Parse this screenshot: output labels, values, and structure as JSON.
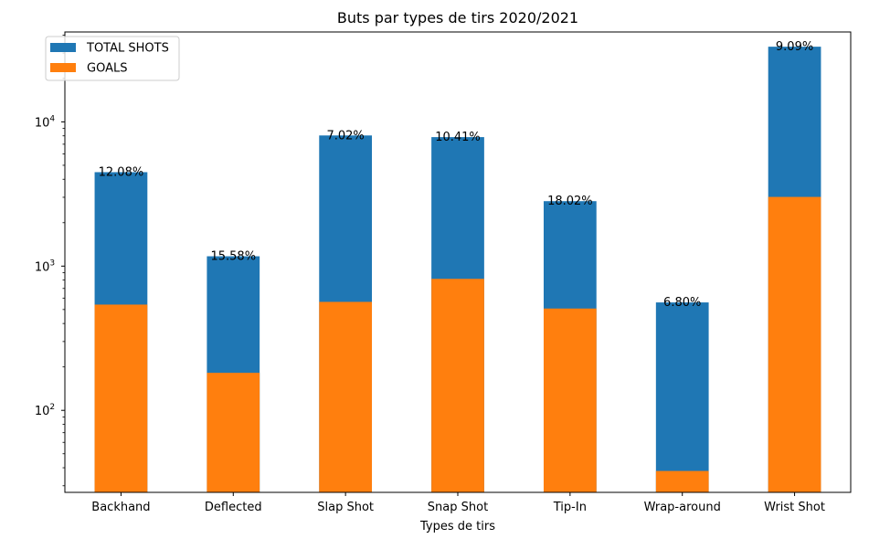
{
  "chart_data": {
    "type": "bar",
    "stacked": "overlay",
    "title": "Buts par types de tirs 2020/2021",
    "xlabel": "Types de tirs",
    "ylabel": "",
    "yscale": "log",
    "ylim": [
      27,
      42000
    ],
    "yticks": [
      {
        "value": 100,
        "base": "10",
        "exp": "2"
      },
      {
        "value": 1000,
        "base": "10",
        "exp": "3"
      },
      {
        "value": 10000,
        "base": "10",
        "exp": "4"
      }
    ],
    "grid": false,
    "legend_position": "top-left",
    "categories": [
      "Backhand",
      "Deflected",
      "Slap Shot",
      "Snap Shot",
      "Tip-In",
      "Wrap-around",
      "Wrist Shot"
    ],
    "series": [
      {
        "name": "TOTAL SHOTS",
        "color": "#1f77b4",
        "values": [
          4480,
          1170,
          8050,
          7840,
          2820,
          560,
          33200
        ]
      },
      {
        "name": "GOALS",
        "color": "#ff7f0e",
        "values": [
          541,
          182,
          565,
          816,
          508,
          38,
          3018
        ]
      }
    ],
    "annotations": [
      "12.08%",
      "15.58%",
      "7.02%",
      "10.41%",
      "18.02%",
      "6.80%",
      "9.09%"
    ]
  }
}
